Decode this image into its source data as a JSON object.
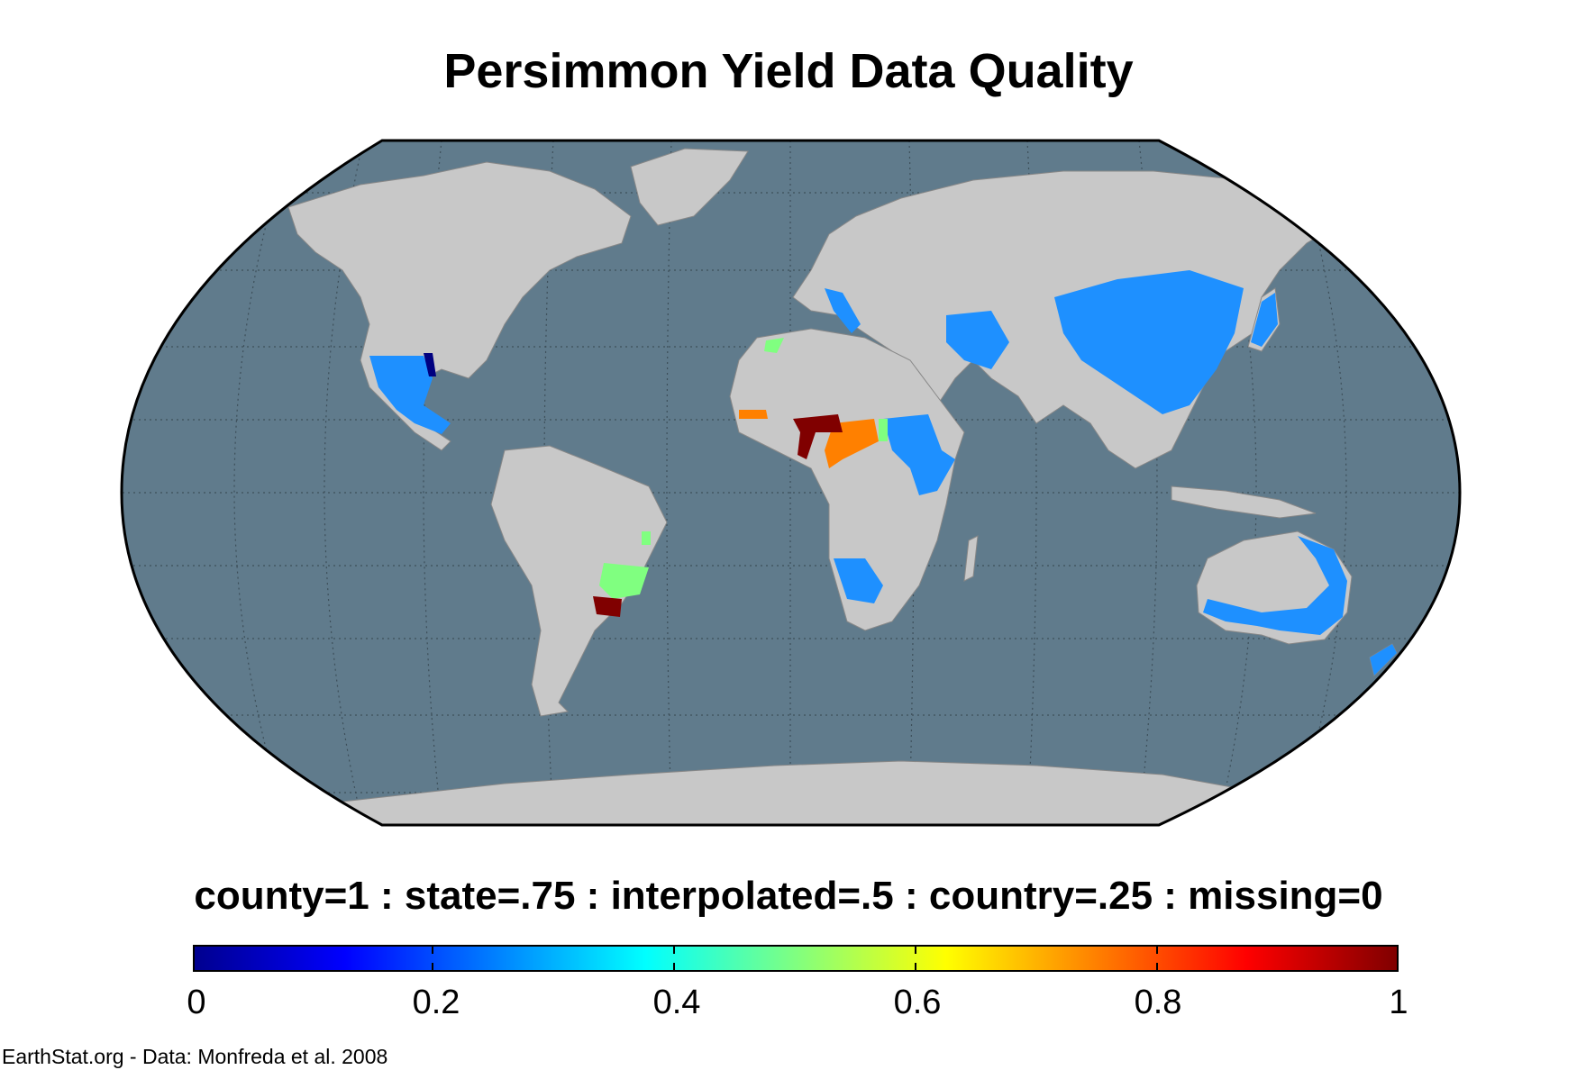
{
  "title": "Persimmon Yield Data Quality",
  "legend": {
    "caption": "county=1 : state=.75 : interpolated=.5 : country=.25 : missing=0",
    "colormap": "jet",
    "ticks": [
      "0",
      "0.2",
      "0.4",
      "0.6",
      "0.8",
      "1"
    ]
  },
  "credit": "EarthStat.org - Data: Monfreda et al. 2008",
  "colors": {
    "ocean": "#607b8c",
    "land": "#c8c8c8",
    "border": "#888888",
    "country": "#1e90ff",
    "interpolated": "#80ff80",
    "state": "#ff8000",
    "county": "#800000"
  },
  "map": {
    "projection": "Robinson",
    "graticule": true
  }
}
